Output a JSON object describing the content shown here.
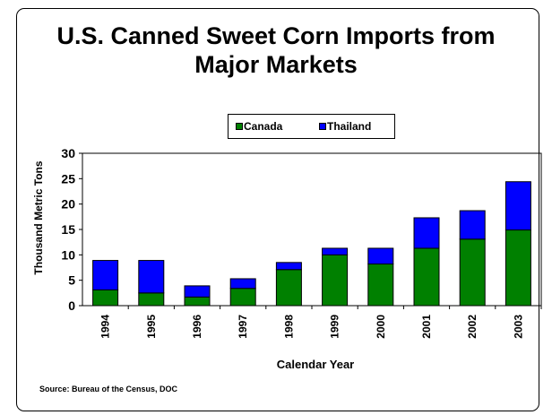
{
  "title_line1": "U.S. Canned Sweet Corn Imports from",
  "title_line2": "Major Markets",
  "source": "Source:  Bureau of the Census, DOC",
  "legend": [
    {
      "label": "Canada",
      "color": "#008000"
    },
    {
      "label": "Thailand",
      "color": "#0000ff"
    }
  ],
  "chart_data": {
    "type": "bar",
    "stacked": true,
    "title": "U.S. Canned Sweet Corn Imports from Major Markets",
    "xlabel": "Calendar Year",
    "ylabel": "Thousand Metric Tons",
    "ylim": [
      0,
      30
    ],
    "yticks": [
      0,
      5,
      10,
      15,
      20,
      25,
      30
    ],
    "grid": false,
    "legend_position": "top",
    "categories": [
      "1994",
      "1995",
      "1996",
      "1997",
      "1998",
      "1999",
      "2000",
      "2001",
      "2002",
      "2003"
    ],
    "series": [
      {
        "name": "Canada",
        "color": "#008000",
        "values": [
          3.1,
          2.5,
          1.7,
          3.4,
          7.1,
          10.0,
          8.2,
          11.3,
          13.1,
          14.9
        ]
      },
      {
        "name": "Thailand",
        "color": "#0000ff",
        "values": [
          5.8,
          6.4,
          2.2,
          1.9,
          1.4,
          1.3,
          3.1,
          6.0,
          5.6,
          9.5
        ]
      }
    ]
  }
}
